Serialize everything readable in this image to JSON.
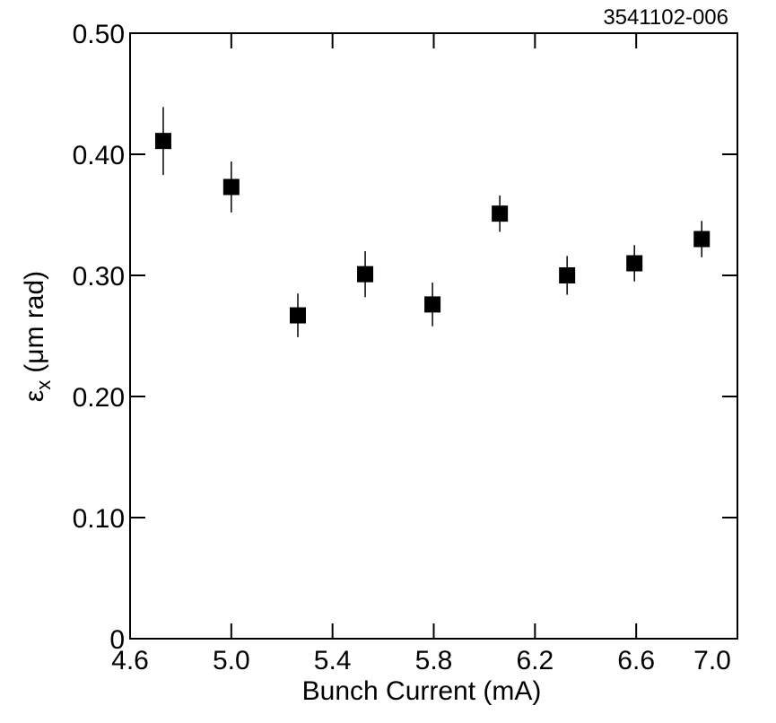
{
  "chart_data": {
    "type": "scatter",
    "annotation": "3541102-006",
    "x_label": "Bunch Current (mA)",
    "y_label": {
      "symbol": "ε",
      "subscript": "x",
      "unit": "(μm rad)"
    },
    "x": [
      4.731,
      5.0,
      5.263,
      5.529,
      5.795,
      6.061,
      6.327,
      6.593,
      6.859
    ],
    "series": [
      {
        "color": "#000000",
        "values": [
          0.411,
          0.373,
          0.267,
          0.301,
          0.276,
          0.351,
          0.3,
          0.31,
          0.33
        ],
        "errors": [
          0.028,
          0.021,
          0.018,
          0.019,
          0.018,
          0.015,
          0.016,
          0.015,
          0.015
        ]
      }
    ],
    "xlim": [
      4.6,
      7.0
    ],
    "xticks": [
      4.6,
      {
        "value": 5.0,
        "label": "5.0"
      },
      5.4,
      5.8,
      6.2,
      6.6,
      {
        "value": 7.0,
        "label": "7.0"
      }
    ],
    "ylim": [
      0,
      0.5
    ],
    "yticks": [
      0,
      {
        "value": 0.1,
        "label": "0.10"
      },
      {
        "value": 0.2,
        "label": "0.20"
      },
      {
        "value": 0.3,
        "label": "0.30"
      },
      {
        "value": 0.4,
        "label": "0.40"
      },
      {
        "value": 0.5,
        "label": "0.50"
      }
    ]
  }
}
